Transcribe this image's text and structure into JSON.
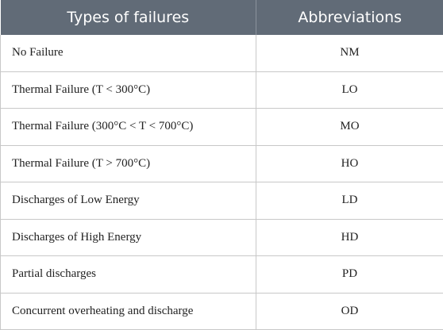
{
  "header": {
    "col1": "Types of failures",
    "col2": "Abbreviations"
  },
  "rows": [
    {
      "type": "No Failure",
      "abbr": "NM"
    },
    {
      "type": "Thermal Failure (T < 300°C)",
      "abbr": "LO"
    },
    {
      "type": "Thermal Failure (300°C < T < 700°C)",
      "abbr": "MO"
    },
    {
      "type": "Thermal Failure (T > 700°C)",
      "abbr": "HO"
    },
    {
      "type": "Discharges of Low Energy",
      "abbr": "LD"
    },
    {
      "type": "Discharges of High Energy",
      "abbr": "HD"
    },
    {
      "type": "Partial discharges",
      "abbr": "PD"
    },
    {
      "type": "Concurrent overheating and discharge",
      "abbr": "OD"
    }
  ]
}
